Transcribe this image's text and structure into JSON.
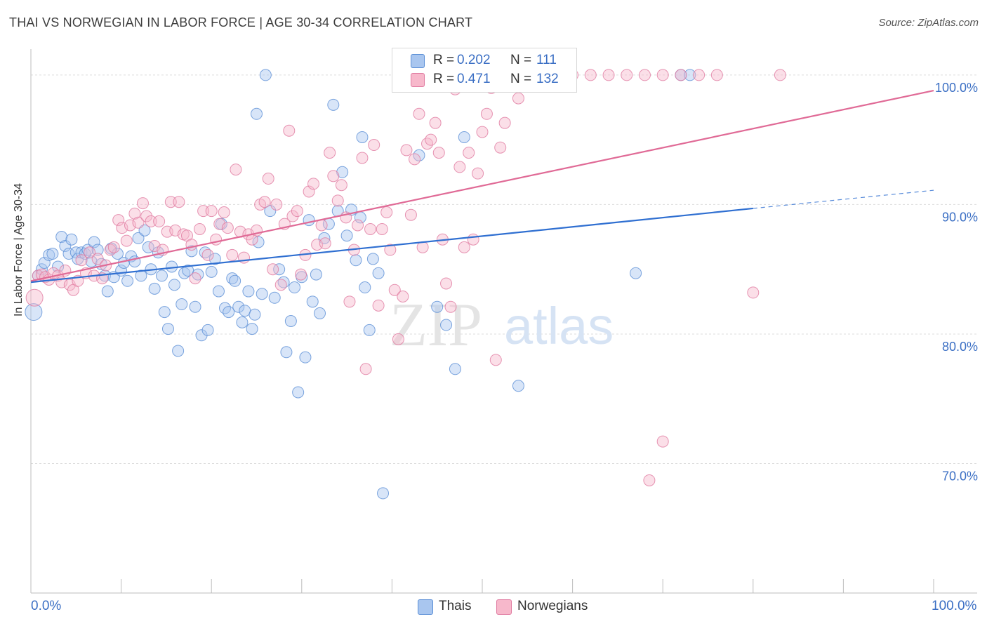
{
  "title": "THAI VS NORWEGIAN IN LABOR FORCE | AGE 30-34 CORRELATION CHART",
  "source": "Source: ZipAtlas.com",
  "watermark": "ZIPatlas",
  "legend": {
    "rows": [
      {
        "r_label": "R =",
        "r_value": "0.202",
        "n_label": "N =",
        "n_value": "111",
        "color": "#a9c6ef",
        "stroke": "#5b8fd6"
      },
      {
        "r_label": "R =",
        "r_value": "0.471",
        "n_label": "N =",
        "n_value": "132",
        "color": "#f7b8cb",
        "stroke": "#e07aa0"
      }
    ]
  },
  "bottom_legend": [
    {
      "label": "Thais",
      "color": "#a9c6ef",
      "stroke": "#5b8fd6"
    },
    {
      "label": "Norwegians",
      "color": "#f7b8cb",
      "stroke": "#e07aa0"
    }
  ],
  "x_tick_left": "0.0%",
  "x_tick_right": "100.0%",
  "chart_data": {
    "type": "scatter",
    "title": "THAI VS NORWEGIAN IN LABOR FORCE | AGE 30-34 CORRELATION CHART",
    "xlabel": "",
    "ylabel": "In Labor Force | Age 30-34",
    "xlim": [
      0,
      100
    ],
    "ylim": [
      60,
      102
    ],
    "y_ticks": [
      {
        "value": 70,
        "label": "70.0%"
      },
      {
        "value": 80,
        "label": "80.0%"
      },
      {
        "value": 90,
        "label": "90.0%"
      },
      {
        "value": 100,
        "label": "100.0%"
      }
    ],
    "x_ticks": [
      0,
      10,
      20,
      30,
      40,
      50,
      60,
      70,
      80,
      90,
      100
    ],
    "grid": true,
    "series": [
      {
        "name": "Thais",
        "color": "#a9c6ef",
        "stroke": "#5b8fd6",
        "line_color": "#2f6fd1",
        "trend": {
          "x0": 0,
          "y0": 84.0,
          "x1": 80,
          "y1": 89.7,
          "dash_to": 100,
          "dash_y": 91.1
        },
        "points": [
          [
            0.3,
            81.7
          ],
          [
            0.8,
            84.5
          ],
          [
            1.2,
            85.0
          ],
          [
            1.5,
            85.5
          ],
          [
            2.0,
            86.1
          ],
          [
            2.4,
            86.2
          ],
          [
            3.0,
            85.2
          ],
          [
            3.4,
            87.5
          ],
          [
            3.8,
            86.8
          ],
          [
            4.2,
            86.2
          ],
          [
            4.5,
            87.3
          ],
          [
            5.0,
            86.3
          ],
          [
            5.2,
            85.8
          ],
          [
            5.6,
            86.3
          ],
          [
            6.0,
            86.2
          ],
          [
            6.3,
            86.5
          ],
          [
            6.7,
            85.6
          ],
          [
            7.0,
            87.1
          ],
          [
            7.4,
            86.5
          ],
          [
            7.8,
            85.4
          ],
          [
            8.2,
            84.5
          ],
          [
            8.5,
            83.3
          ],
          [
            8.9,
            86.6
          ],
          [
            9.2,
            84.4
          ],
          [
            9.6,
            86.2
          ],
          [
            10.0,
            84.9
          ],
          [
            10.3,
            85.5
          ],
          [
            10.7,
            84.1
          ],
          [
            11.1,
            86.0
          ],
          [
            11.5,
            85.6
          ],
          [
            11.9,
            87.4
          ],
          [
            12.2,
            84.5
          ],
          [
            12.6,
            88.0
          ],
          [
            13.0,
            86.7
          ],
          [
            13.3,
            85.0
          ],
          [
            13.7,
            83.5
          ],
          [
            14.1,
            86.3
          ],
          [
            14.5,
            84.5
          ],
          [
            14.8,
            81.7
          ],
          [
            15.2,
            80.4
          ],
          [
            15.6,
            85.2
          ],
          [
            15.9,
            83.8
          ],
          [
            16.3,
            78.7
          ],
          [
            16.7,
            82.3
          ],
          [
            17.0,
            84.7
          ],
          [
            17.4,
            84.9
          ],
          [
            17.8,
            86.4
          ],
          [
            18.2,
            82.1
          ],
          [
            18.5,
            84.6
          ],
          [
            18.9,
            79.9
          ],
          [
            19.3,
            86.3
          ],
          [
            19.6,
            80.3
          ],
          [
            20.0,
            84.8
          ],
          [
            20.4,
            85.8
          ],
          [
            20.8,
            83.3
          ],
          [
            21.1,
            88.5
          ],
          [
            21.5,
            82.0
          ],
          [
            21.9,
            81.7
          ],
          [
            22.3,
            84.3
          ],
          [
            22.6,
            84.1
          ],
          [
            23.0,
            82.1
          ],
          [
            23.4,
            80.9
          ],
          [
            23.7,
            81.8
          ],
          [
            24.1,
            83.3
          ],
          [
            24.5,
            80.4
          ],
          [
            24.8,
            81.5
          ],
          [
            25.2,
            87.1
          ],
          [
            25.6,
            83.1
          ],
          [
            26.0,
            100.0
          ],
          [
            25.0,
            97.0
          ],
          [
            26.5,
            89.5
          ],
          [
            27.0,
            82.8
          ],
          [
            27.5,
            85.0
          ],
          [
            28.0,
            84.0
          ],
          [
            28.3,
            78.6
          ],
          [
            28.8,
            81.0
          ],
          [
            29.2,
            83.6
          ],
          [
            29.6,
            75.5
          ],
          [
            30.0,
            84.4
          ],
          [
            30.4,
            78.2
          ],
          [
            30.8,
            88.8
          ],
          [
            31.2,
            82.5
          ],
          [
            31.6,
            84.6
          ],
          [
            32.0,
            81.6
          ],
          [
            32.5,
            87.4
          ],
          [
            33.0,
            88.5
          ],
          [
            33.5,
            97.7
          ],
          [
            34.0,
            89.5
          ],
          [
            34.5,
            92.5
          ],
          [
            35.0,
            87.6
          ],
          [
            35.5,
            89.6
          ],
          [
            36.0,
            85.7
          ],
          [
            36.5,
            89.0
          ],
          [
            37.0,
            83.6
          ],
          [
            37.5,
            80.3
          ],
          [
            37.9,
            85.8
          ],
          [
            38.5,
            84.7
          ],
          [
            39.0,
            67.7
          ],
          [
            36.7,
            95.2
          ],
          [
            41.0,
            100.0
          ],
          [
            43.0,
            93.8
          ],
          [
            45.0,
            82.1
          ],
          [
            46.0,
            80.7
          ],
          [
            47.0,
            77.3
          ],
          [
            48.0,
            95.2
          ],
          [
            51.0,
            100.0
          ],
          [
            54.0,
            76.0
          ],
          [
            58.0,
            100.0
          ],
          [
            67.0,
            84.7
          ],
          [
            72.0,
            100.0
          ],
          [
            73.0,
            100.0
          ]
        ]
      },
      {
        "name": "Norwegians",
        "color": "#f7b8cb",
        "stroke": "#e07aa0",
        "line_color": "#e06a96",
        "trend": {
          "x0": 0,
          "y0": 84.1,
          "x1": 100,
          "y1": 98.8
        },
        "points": [
          [
            0.4,
            82.8
          ],
          [
            0.8,
            84.5
          ],
          [
            1.2,
            84.6
          ],
          [
            1.6,
            84.4
          ],
          [
            2.0,
            84.2
          ],
          [
            2.5,
            84.7
          ],
          [
            3.0,
            84.5
          ],
          [
            3.4,
            84.0
          ],
          [
            3.8,
            84.9
          ],
          [
            4.3,
            83.8
          ],
          [
            4.7,
            83.4
          ],
          [
            5.2,
            84.1
          ],
          [
            5.6,
            85.7
          ],
          [
            6.1,
            84.7
          ],
          [
            6.5,
            86.3
          ],
          [
            7.0,
            84.5
          ],
          [
            7.4,
            85.8
          ],
          [
            7.9,
            84.3
          ],
          [
            8.3,
            85.3
          ],
          [
            8.8,
            86.5
          ],
          [
            9.2,
            86.7
          ],
          [
            9.7,
            88.8
          ],
          [
            10.1,
            88.2
          ],
          [
            10.6,
            87.2
          ],
          [
            11.0,
            88.4
          ],
          [
            11.5,
            89.3
          ],
          [
            11.9,
            88.6
          ],
          [
            12.4,
            90.1
          ],
          [
            12.8,
            89.1
          ],
          [
            13.3,
            88.7
          ],
          [
            13.7,
            86.8
          ],
          [
            14.2,
            88.7
          ],
          [
            14.6,
            86.5
          ],
          [
            15.1,
            87.9
          ],
          [
            15.5,
            90.2
          ],
          [
            16.0,
            88.0
          ],
          [
            16.4,
            90.2
          ],
          [
            16.9,
            87.7
          ],
          [
            17.3,
            87.6
          ],
          [
            17.8,
            86.9
          ],
          [
            18.2,
            84.3
          ],
          [
            18.7,
            88.1
          ],
          [
            19.1,
            89.5
          ],
          [
            19.6,
            86.1
          ],
          [
            20.0,
            89.5
          ],
          [
            20.5,
            87.3
          ],
          [
            20.9,
            88.5
          ],
          [
            21.4,
            89.4
          ],
          [
            21.8,
            88.2
          ],
          [
            22.3,
            86.1
          ],
          [
            22.7,
            92.7
          ],
          [
            23.2,
            87.9
          ],
          [
            23.6,
            85.9
          ],
          [
            24.1,
            87.7
          ],
          [
            24.5,
            87.3
          ],
          [
            25.0,
            88.0
          ],
          [
            25.4,
            90.0
          ],
          [
            25.9,
            90.2
          ],
          [
            26.3,
            92.0
          ],
          [
            26.8,
            85.0
          ],
          [
            27.2,
            90.0
          ],
          [
            27.7,
            83.8
          ],
          [
            28.1,
            88.5
          ],
          [
            28.6,
            95.7
          ],
          [
            29.0,
            89.1
          ],
          [
            29.5,
            89.5
          ],
          [
            29.9,
            84.6
          ],
          [
            30.4,
            86.1
          ],
          [
            30.8,
            91.0
          ],
          [
            31.3,
            91.6
          ],
          [
            31.7,
            86.9
          ],
          [
            32.2,
            88.4
          ],
          [
            32.6,
            87.0
          ],
          [
            33.1,
            94.0
          ],
          [
            33.5,
            92.2
          ],
          [
            34.0,
            90.3
          ],
          [
            34.4,
            91.5
          ],
          [
            34.9,
            89.0
          ],
          [
            35.3,
            82.5
          ],
          [
            35.8,
            86.5
          ],
          [
            36.2,
            88.4
          ],
          [
            36.7,
            93.6
          ],
          [
            37.1,
            77.3
          ],
          [
            37.6,
            88.1
          ],
          [
            38.0,
            94.6
          ],
          [
            38.5,
            82.2
          ],
          [
            38.9,
            88.1
          ],
          [
            39.4,
            89.4
          ],
          [
            39.8,
            86.5
          ],
          [
            40.3,
            83.4
          ],
          [
            40.7,
            79.6
          ],
          [
            41.2,
            82.9
          ],
          [
            41.6,
            94.2
          ],
          [
            42.1,
            89.2
          ],
          [
            42.5,
            93.5
          ],
          [
            43.0,
            97.0
          ],
          [
            43.4,
            86.7
          ],
          [
            43.9,
            94.7
          ],
          [
            44.3,
            95.0
          ],
          [
            44.8,
            96.3
          ],
          [
            45.2,
            94.0
          ],
          [
            45.6,
            87.3
          ],
          [
            46.0,
            83.9
          ],
          [
            46.5,
            82.1
          ],
          [
            47.0,
            98.9
          ],
          [
            47.5,
            92.9
          ],
          [
            48.0,
            86.7
          ],
          [
            48.5,
            94.0
          ],
          [
            49.0,
            87.3
          ],
          [
            49.5,
            92.4
          ],
          [
            50.0,
            95.6
          ],
          [
            50.5,
            97.0
          ],
          [
            51.0,
            99.0
          ],
          [
            51.5,
            78.0
          ],
          [
            52.0,
            94.4
          ],
          [
            52.5,
            96.3
          ],
          [
            53.0,
            99.3
          ],
          [
            54.0,
            98.2
          ],
          [
            55.0,
            100.0
          ],
          [
            60.0,
            100.0
          ],
          [
            62.0,
            100.0
          ],
          [
            64.0,
            100.0
          ],
          [
            66.0,
            100.0
          ],
          [
            68.0,
            100.0
          ],
          [
            70.0,
            100.0
          ],
          [
            72.0,
            100.0
          ],
          [
            74.0,
            100.0
          ],
          [
            76.0,
            100.0
          ],
          [
            80.0,
            83.2
          ],
          [
            83.0,
            100.0
          ],
          [
            70.0,
            71.7
          ],
          [
            68.5,
            68.7
          ]
        ]
      }
    ]
  }
}
